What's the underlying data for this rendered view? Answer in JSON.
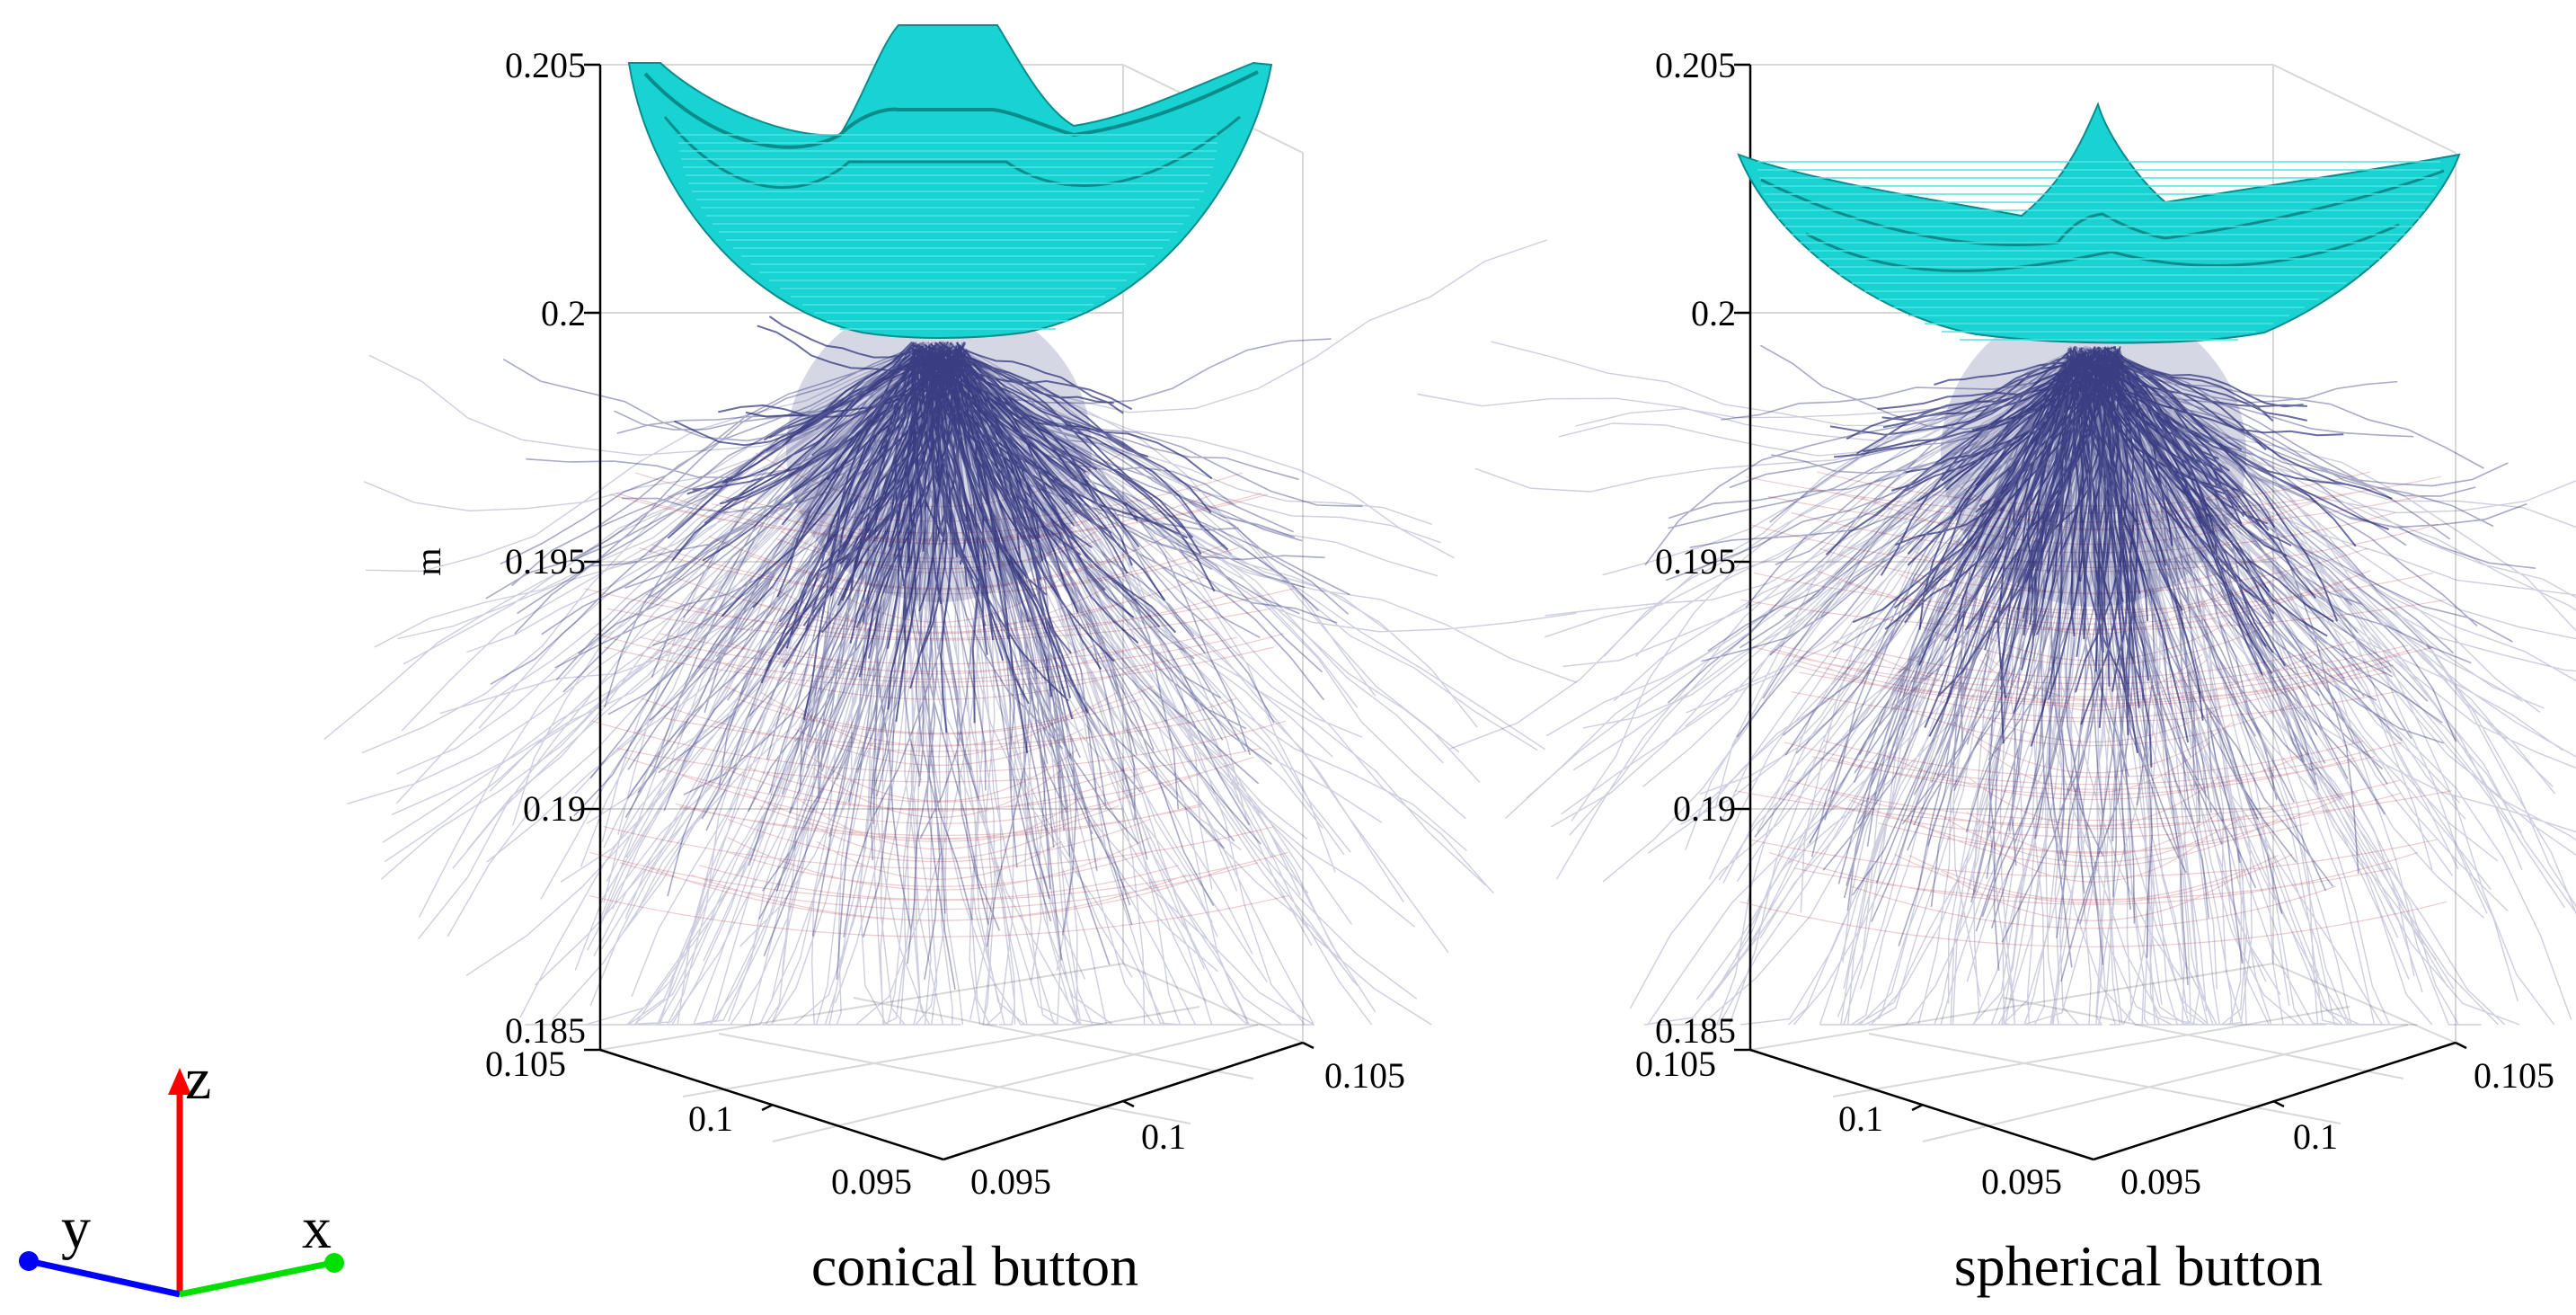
{
  "panels": [
    {
      "id": "conical",
      "caption": "conical button",
      "button_shape": "conical",
      "z_axis_label": "m",
      "z_ticks": [
        "0.205",
        "0.2",
        "0.195",
        "0.19",
        "0.185"
      ],
      "y_ticks": [
        "0.105",
        "0.1",
        "0.095"
      ],
      "x_ticks": [
        "0.095",
        "0.1",
        "0.105"
      ]
    },
    {
      "id": "spherical",
      "caption": "spherical button",
      "button_shape": "spherical",
      "z_axis_label": "",
      "z_ticks": [
        "0.205",
        "0.2",
        "0.195",
        "0.19",
        "0.185"
      ],
      "y_ticks": [
        "0.105",
        "0.1",
        "0.095"
      ],
      "x_ticks": [
        "0.095",
        "0.1",
        "0.105"
      ]
    }
  ],
  "triad": {
    "z": "z",
    "y": "y",
    "x": "x"
  },
  "colors": {
    "button": "#19d2d2",
    "button_edge": "#0a8c8c",
    "fiber": "#1a1f6e",
    "fiber_red": "#c0303a",
    "z_axis": "#ff0000",
    "y_axis": "#0000ff",
    "x_axis": "#00e000"
  }
}
